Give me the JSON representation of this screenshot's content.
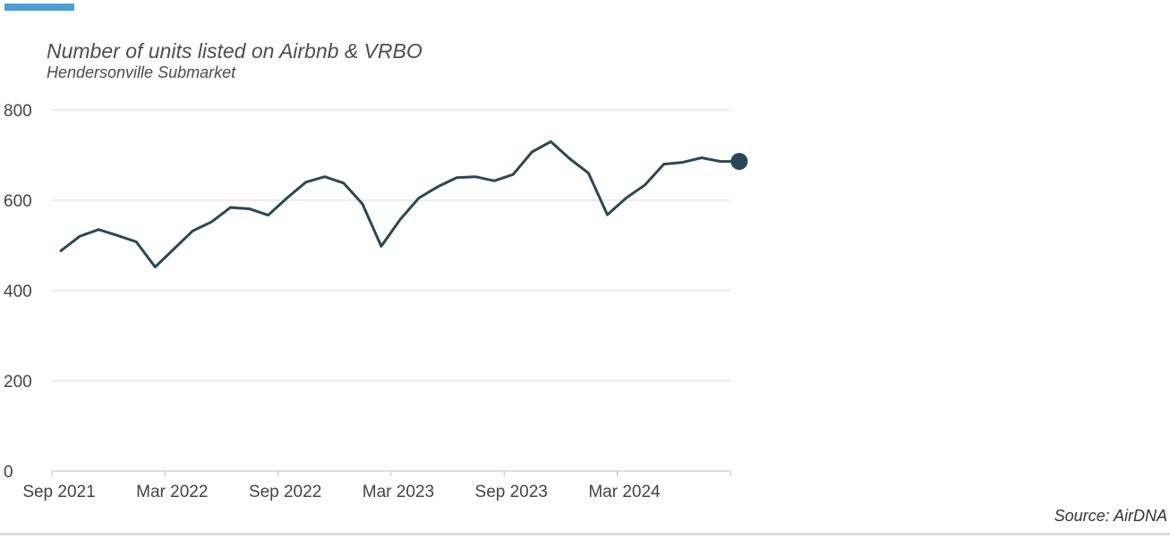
{
  "colors": {
    "accent": "#4a9fd4",
    "line": "#2a4756",
    "grid": "#d9d9d9",
    "axis": "#bfbfbf"
  },
  "chart_data": {
    "type": "line",
    "title": "Number of units listed on Airbnb & VRBO",
    "subtitle": "Hendersonville Submarket",
    "source": "Source: AirDNA",
    "xlabel": "",
    "ylabel": "",
    "x": [
      "2021-09",
      "2021-10",
      "2021-11",
      "2021-12",
      "2022-01",
      "2022-02",
      "2022-03",
      "2022-04",
      "2022-05",
      "2022-06",
      "2022-07",
      "2022-08",
      "2022-09",
      "2022-10",
      "2022-11",
      "2022-12",
      "2023-01",
      "2023-02",
      "2023-03",
      "2023-04",
      "2023-05",
      "2023-06",
      "2023-07",
      "2023-08",
      "2023-09",
      "2023-10",
      "2023-11",
      "2023-12",
      "2024-01",
      "2024-02",
      "2024-03",
      "2024-04",
      "2024-05",
      "2024-06",
      "2024-07",
      "2024-08",
      "2024-09"
    ],
    "series": [
      {
        "values": [
          488,
          520,
          535,
          522,
          508,
          452,
          492,
          532,
          552,
          584,
          581,
          567,
          605,
          640,
          652,
          638,
          592,
          498,
          557,
          605,
          630,
          650,
          652,
          643,
          657,
          707,
          730,
          692,
          660,
          568,
          605,
          634,
          680,
          684,
          694,
          686,
          686
        ],
        "end_marker": true
      }
    ],
    "x_ticks": [
      {
        "label": "Sep 2021",
        "index": 0
      },
      {
        "label": "Mar 2022",
        "index": 6
      },
      {
        "label": "Sep 2022",
        "index": 12
      },
      {
        "label": "Mar 2023",
        "index": 18
      },
      {
        "label": "Sep 2023",
        "index": 24
      },
      {
        "label": "Mar 2024",
        "index": 30
      }
    ],
    "y_ticks": [
      0,
      200,
      400,
      600,
      800
    ],
    "ylim": [
      0,
      800
    ],
    "grid": "horizontal",
    "legend": "none"
  }
}
